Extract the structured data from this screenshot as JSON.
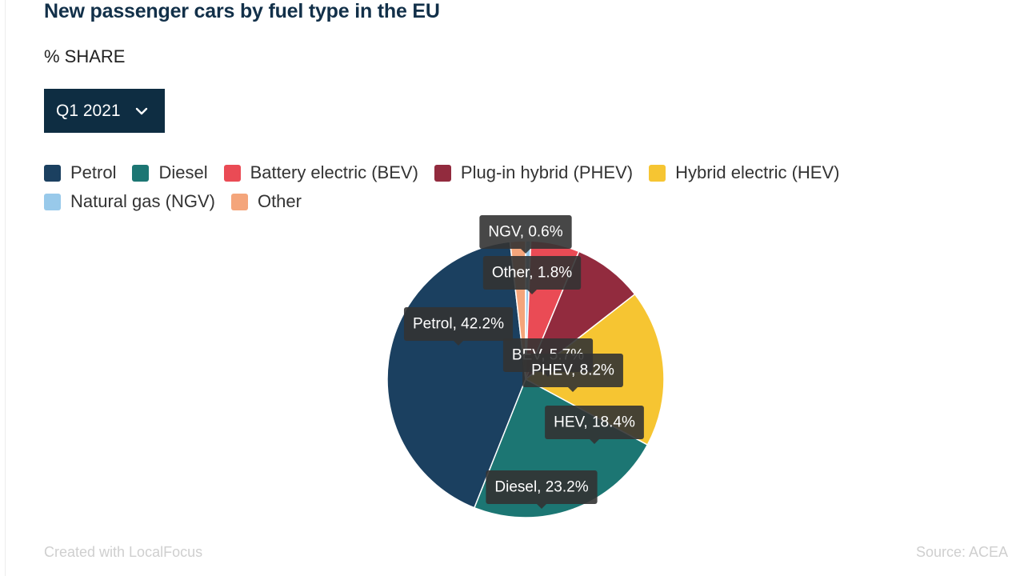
{
  "title": "New passenger cars by fuel type in the EU",
  "subtitle": "% SHARE",
  "dropdown": {
    "selected": "Q1 2021",
    "icon": "chevron-down-icon"
  },
  "legend": {
    "row1": [
      {
        "label": "Petrol",
        "color": "#1b4060"
      },
      {
        "label": "Diesel",
        "color": "#1c7673"
      },
      {
        "label": "Battery electric (BEV)",
        "color": "#ea4b55"
      },
      {
        "label": "Plug-in hybrid (PHEV)",
        "color": "#922b3e"
      },
      {
        "label": "Hybrid electric (HEV)",
        "color": "#f6c532"
      }
    ],
    "row2": [
      {
        "label": "Natural gas (NGV)",
        "color": "#98c9ea"
      },
      {
        "label": "Other",
        "color": "#f4a57b"
      }
    ]
  },
  "chart_data": {
    "type": "pie",
    "title": "New passenger cars by fuel type in the EU",
    "subtitle": "% SHARE",
    "period": "Q1 2021",
    "slices": [
      {
        "name": "NGV",
        "value": 0.6,
        "color": "#98c9ea",
        "label": "NGV, 0.6%"
      },
      {
        "name": "BEV",
        "value": 5.7,
        "color": "#ea4b55",
        "label": "BEV, 5.7%"
      },
      {
        "name": "PHEV",
        "value": 8.2,
        "color": "#922b3e",
        "label": "PHEV, 8.2%"
      },
      {
        "name": "HEV",
        "value": 18.4,
        "color": "#f6c532",
        "label": "HEV, 18.4%"
      },
      {
        "name": "Diesel",
        "value": 23.2,
        "color": "#1c7673",
        "label": "Diesel, 23.2%"
      },
      {
        "name": "Petrol",
        "value": 42.2,
        "color": "#1b4060",
        "label": "Petrol, 42.2%"
      },
      {
        "name": "Other",
        "value": 1.8,
        "color": "#f4a57b",
        "label": "Other, 1.8%"
      }
    ]
  },
  "footer": {
    "credit": "Created with LocalFocus",
    "source": "Source:  ACEA"
  }
}
